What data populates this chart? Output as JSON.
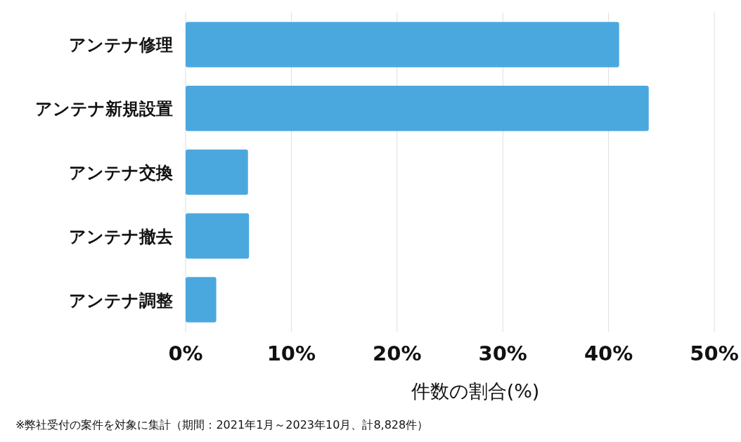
{
  "chart_data": {
    "type": "bar",
    "orientation": "horizontal",
    "categories": [
      "アンテナ修理",
      "アンテナ新規設置",
      "アンテナ交換",
      "アンテナ撤去",
      "アンテナ調整"
    ],
    "values": [
      41.0,
      43.8,
      5.9,
      6.0,
      2.9
    ],
    "color": "#4ba8df",
    "xlim": [
      0,
      50
    ],
    "xticks": [
      {
        "value": 0,
        "label": "0%"
      },
      {
        "value": 10,
        "label": "10%"
      },
      {
        "value": 20,
        "label": "20%"
      },
      {
        "value": 30,
        "label": "30%"
      },
      {
        "value": 40,
        "label": "40%"
      },
      {
        "value": 50,
        "label": "50%"
      }
    ],
    "grid": "x",
    "xlabel": "件数の割合(%)",
    "annotations": [
      "※弊社受付の案件を対象に集計（期間：2021年1月～2023年10月、計8,828件）"
    ]
  }
}
